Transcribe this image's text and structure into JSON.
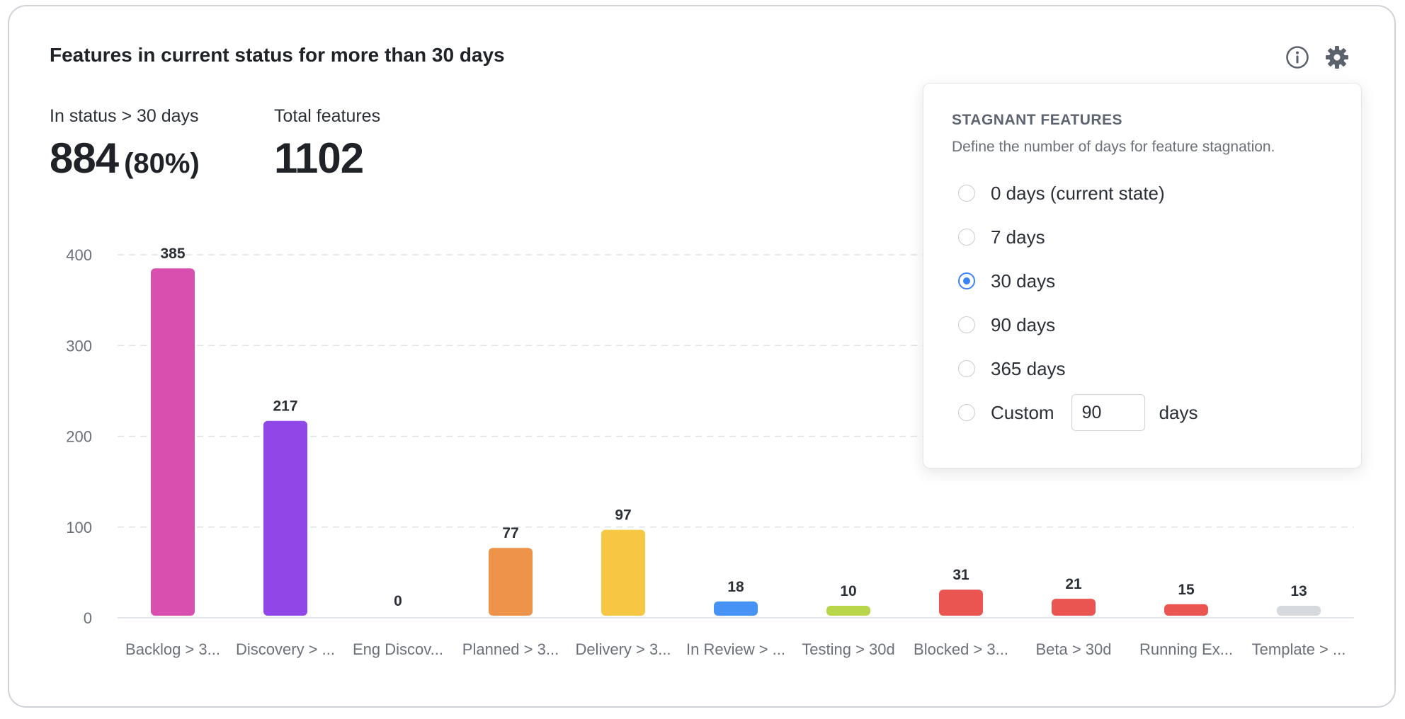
{
  "widget": {
    "title": "Features in current status for more than 30 days",
    "icons": {
      "info": "info-icon",
      "settings": "gear-icon"
    }
  },
  "stats": {
    "in_status": {
      "label": "In status > 30 days",
      "value": "884",
      "percent": "(80%)"
    },
    "total": {
      "label": "Total features",
      "value": "1102"
    }
  },
  "chart_data": {
    "type": "bar",
    "categories": [
      "Backlog > 3...",
      "Discovery > ...",
      "Eng Discov...",
      "Planned > 3...",
      "Delivery > 3...",
      "In Review > ...",
      "Testing > 30d",
      "Blocked > 3...",
      "Beta > 30d",
      "Running Ex...",
      "Template > ..."
    ],
    "values": [
      385,
      217,
      0,
      77,
      97,
      18,
      10,
      31,
      21,
      15,
      13
    ],
    "colors": [
      "#d94fb0",
      "#9146e8",
      "#9146e8",
      "#ed934a",
      "#f7c744",
      "#4793f5",
      "#b9d54a",
      "#ea5451",
      "#ea5451",
      "#ea5451",
      "#d6d9de"
    ],
    "y_ticks": [
      0,
      100,
      200,
      300,
      400
    ],
    "ylim": [
      0,
      400
    ],
    "grid": true,
    "title": "",
    "xlabel": "",
    "ylabel": ""
  },
  "popover": {
    "title": "STAGNANT FEATURES",
    "description": "Define the number of days for feature stagnation.",
    "options": [
      {
        "label": "0 days (current state)",
        "checked": false
      },
      {
        "label": "7 days",
        "checked": false
      },
      {
        "label": "30 days",
        "checked": true
      },
      {
        "label": "90 days",
        "checked": false
      },
      {
        "label": "365 days",
        "checked": false
      }
    ],
    "custom": {
      "label": "Custom",
      "value": "90",
      "suffix": "days",
      "checked": false
    },
    "accent": "#3b82f6"
  }
}
